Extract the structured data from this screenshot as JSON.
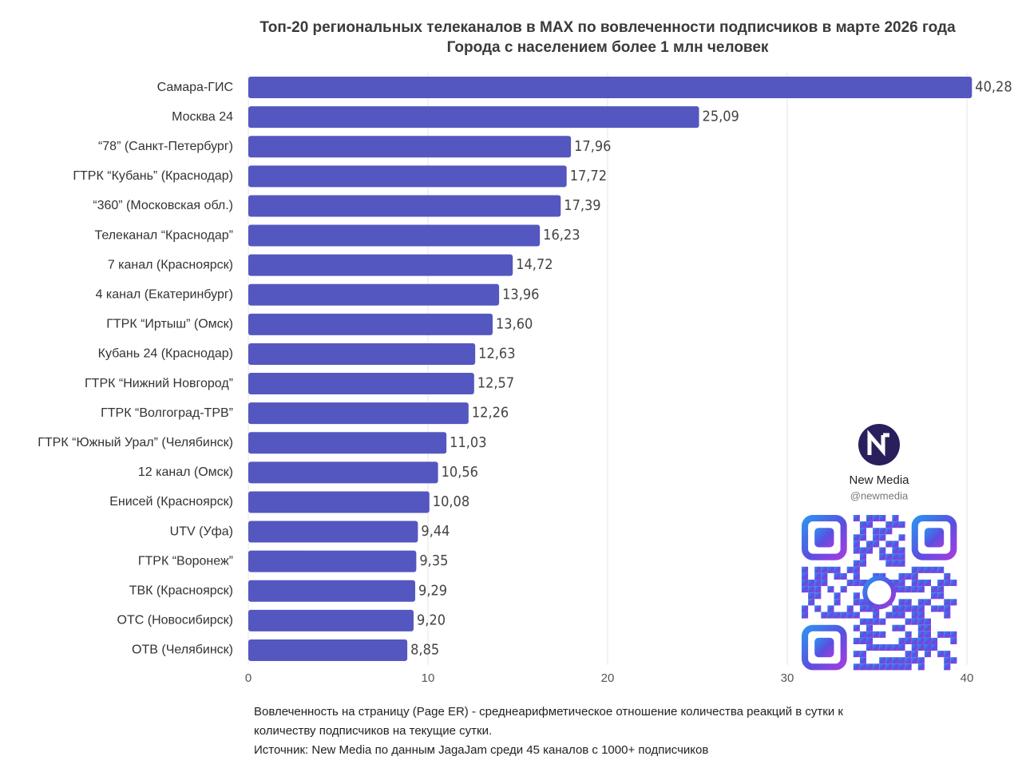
{
  "chart_data": {
    "type": "bar",
    "orientation": "horizontal",
    "title": "Топ-20 региональных телеканалов в MAX по вовлеченности подписчиков в марте 2026 года",
    "subtitle": "Города с населением более 1 млн человек",
    "categories": [
      "Самара-ГИС",
      "Москва 24",
      "“78” (Санкт-Петербург)",
      "ГТРК “Кубань” (Краснодар)",
      "“360” (Московская обл.)",
      "Телеканал “Краснодар”",
      "7 канал (Красноярск)",
      "4 канал (Екатеринбург)",
      "ГТРК “Иртыш” (Омск)",
      "Кубань 24 (Краснодар)",
      "ГТРК “Нижний Новгород”",
      "ГТРК “Волгоград-ТРВ”",
      "ГТРК “Южный Урал” (Челябинск)",
      "12 канал (Омск)",
      "Енисей (Красноярск)",
      "UTV (Уфа)",
      "ГТРК “Воронеж”",
      "ТВК (Красноярск)",
      "ОТС (Новосибирск)",
      "ОТВ (Челябинск)"
    ],
    "values": [
      40.28,
      25.09,
      17.96,
      17.72,
      17.39,
      16.23,
      14.72,
      13.96,
      13.6,
      12.63,
      12.57,
      12.26,
      11.03,
      10.56,
      10.08,
      9.44,
      9.35,
      9.29,
      9.2,
      8.85
    ],
    "value_labels": [
      "40,28",
      "25,09",
      "17,96",
      "17,72",
      "17,39",
      "16,23",
      "14,72",
      "13,96",
      "13,60",
      "12,63",
      "12,57",
      "12,26",
      "11,03",
      "10,56",
      "10,08",
      "9,44",
      "9,35",
      "9,29",
      "9,20",
      "8,85"
    ],
    "color": "#5457bf",
    "xlim": [
      0,
      40
    ],
    "xticks": [
      0,
      10,
      20,
      30,
      40
    ],
    "grid": true,
    "notes": [
      "Вовлеченность на страницу (Page ER) - среднеарифметическое отношение количества реакций в сутки к",
      "количеству подписчиков на текущие сутки.",
      "Источник: New Media по данным JagaJam среди 45 каналов с 1000+ подписчиков"
    ],
    "brand": {
      "name": "New Media",
      "handle": "@newmedia"
    }
  }
}
